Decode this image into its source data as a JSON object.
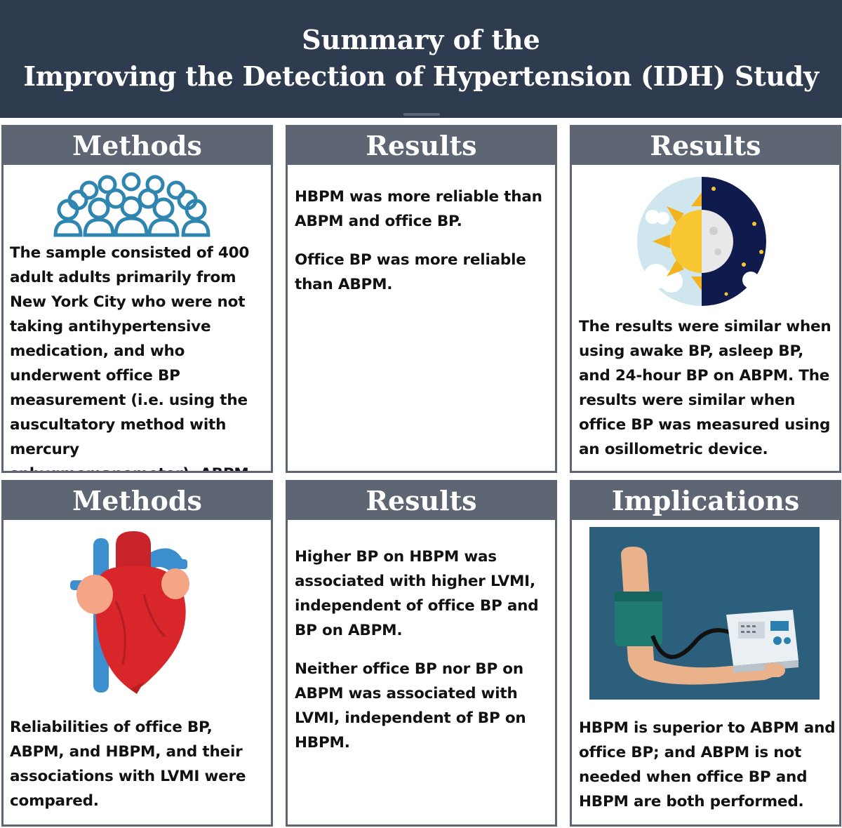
{
  "banner": {
    "line1": "Summary of the",
    "line2": "Improving the Detection of Hypertension (IDH) Study"
  },
  "cards": {
    "methods1": {
      "title": "Methods",
      "icon": "people-group-icon",
      "text": "The sample consisted of 400 adult adults primarily from New York City who were not taking antihypertensive medication, and who underwent office BP measurement (i.e. using the auscultatory method with mercury sphygmomanometer), ABPM, and HBPM."
    },
    "results1": {
      "title": "Results",
      "para1": "HBPM was more reliable than ABPM and office BP.",
      "para2": "Office BP was more reliable than ABPM."
    },
    "results2": {
      "title": "Results",
      "icon": "day-night-icon",
      "text": "The results were similar when using awake BP, asleep BP, and 24-hour BP on ABPM. The results were similar when office BP was measured using an osillometric device."
    },
    "methods2": {
      "title": "Methods",
      "icon": "heart-icon",
      "text": "Reliabilities of office BP, ABPM, and HBPM, and their associations with LVMI were compared."
    },
    "results3": {
      "title": "Results",
      "para1": "Higher BP on HBPM was associated with higher LVMI, independent of office BP and BP on ABPM.",
      "para2": "Neither office BP nor BP on ABPM was associated with LVMI, independent of BP on HBPM."
    },
    "implications": {
      "title": "Implications",
      "icon": "blood-pressure-monitor-icon",
      "text": "HBPM is superior to ABPM and office BP; and ABPM is not needed when office BP and HBPM are both performed."
    }
  },
  "colors": {
    "banner": "#2f3b4e",
    "card_header": "#5e6674",
    "people_icon": "#2e86b0",
    "heart": "#d8262b",
    "monitor_bg": "#2b5f7c"
  }
}
